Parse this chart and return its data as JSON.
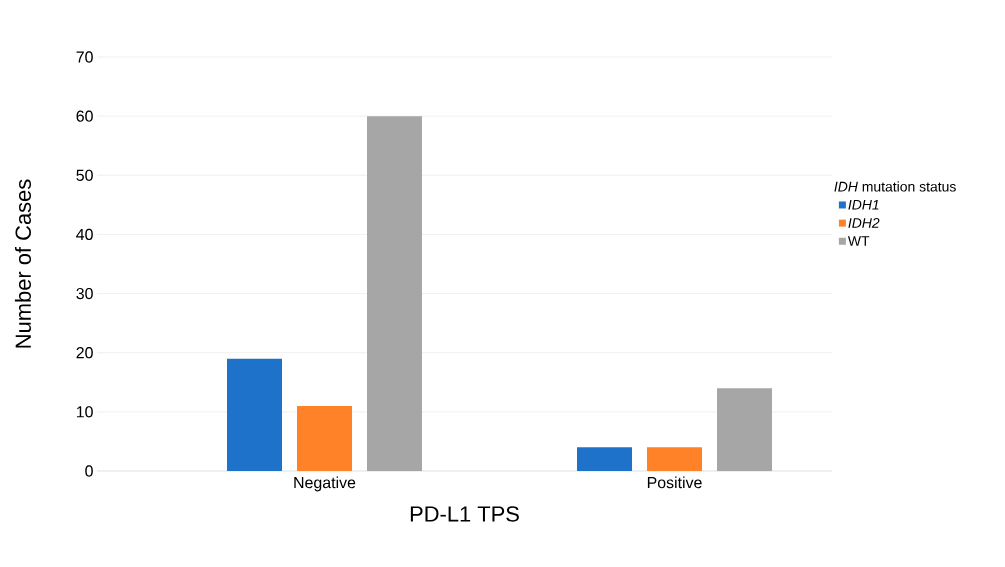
{
  "chart_data": {
    "type": "bar",
    "xlabel": "PD-L1 TPS",
    "ylabel": "Number of Cases",
    "legend_title": "*IDH* mutation status",
    "categories": [
      "Negative",
      "Positive"
    ],
    "series": [
      {
        "name": "*IDH1*",
        "color": "#1f72c9",
        "values": [
          19,
          4
        ]
      },
      {
        "name": "*IDH2*",
        "color": "#ff8228",
        "values": [
          11,
          4
        ]
      },
      {
        "name": "WT",
        "color": "#a6a6a6",
        "values": [
          60,
          14
        ]
      }
    ],
    "ylim": [
      0,
      70
    ],
    "yticks": [
      0,
      10,
      20,
      30,
      40,
      50,
      60,
      70
    ],
    "grid": "y",
    "legend": "right"
  }
}
